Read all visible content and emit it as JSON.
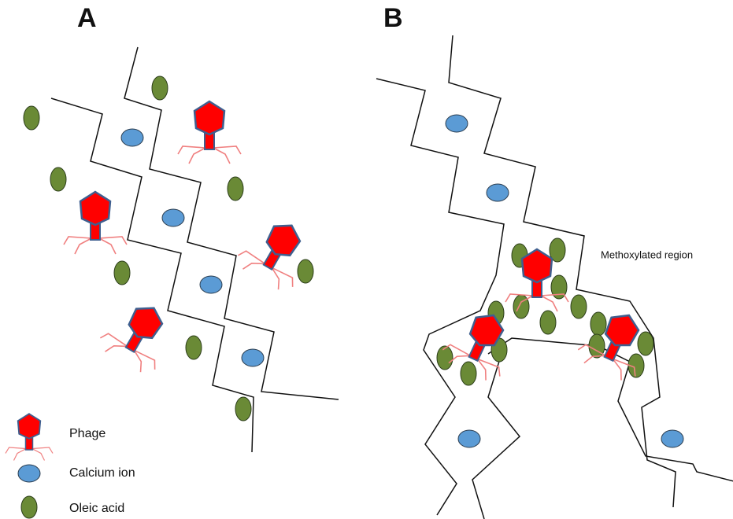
{
  "panels": {
    "a": {
      "label": "A"
    },
    "b": {
      "label": "B",
      "annotation": "Methoxylated region"
    }
  },
  "legend": {
    "items": [
      {
        "label": "Phage"
      },
      {
        "label": "Calcium ion"
      },
      {
        "label": "Oleic acid"
      }
    ]
  }
}
